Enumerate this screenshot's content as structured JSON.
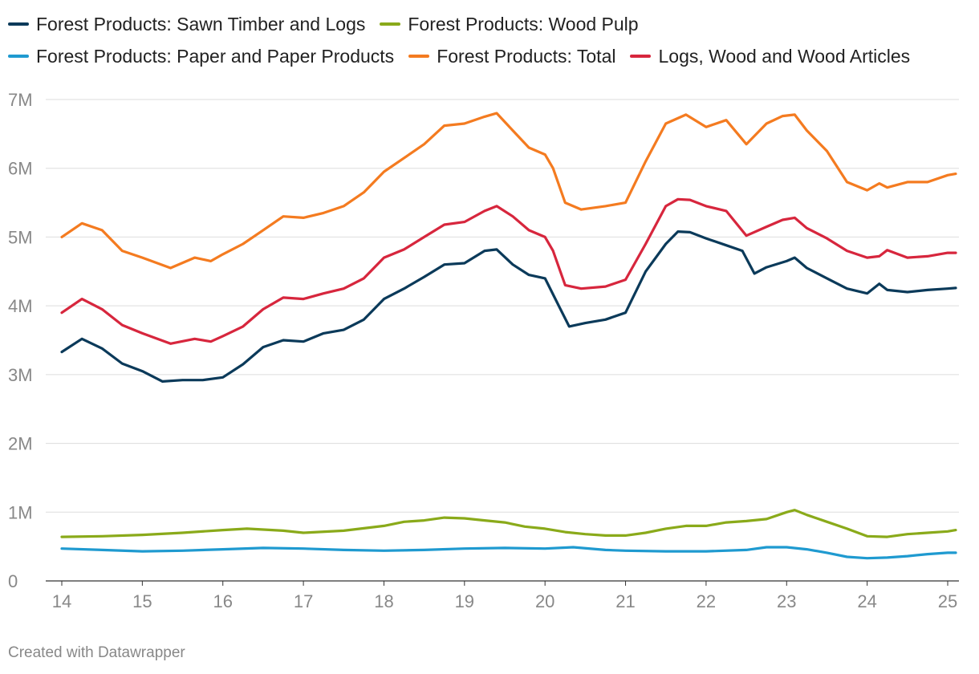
{
  "chart_data": {
    "type": "line",
    "title": "",
    "xlabel": "",
    "ylabel": "",
    "ylim": [
      0,
      7000000
    ],
    "xlim": [
      14,
      25.1
    ],
    "yticks": [
      {
        "value": 0,
        "label": "0"
      },
      {
        "value": 1000000,
        "label": "1M"
      },
      {
        "value": 2000000,
        "label": "2M"
      },
      {
        "value": 3000000,
        "label": "3M"
      },
      {
        "value": 4000000,
        "label": "4M"
      },
      {
        "value": 5000000,
        "label": "5M"
      },
      {
        "value": 6000000,
        "label": "6M"
      },
      {
        "value": 7000000,
        "label": "7M"
      }
    ],
    "xticks": [
      {
        "value": 14,
        "label": "14"
      },
      {
        "value": 15,
        "label": "15"
      },
      {
        "value": 16,
        "label": "16"
      },
      {
        "value": 17,
        "label": "17"
      },
      {
        "value": 18,
        "label": "18"
      },
      {
        "value": 19,
        "label": "19"
      },
      {
        "value": 20,
        "label": "20"
      },
      {
        "value": 21,
        "label": "21"
      },
      {
        "value": 22,
        "label": "22"
      },
      {
        "value": 23,
        "label": "23"
      },
      {
        "value": 24,
        "label": "24"
      },
      {
        "value": 25,
        "label": "25"
      }
    ],
    "grid": true,
    "legend_position": "top",
    "series": [
      {
        "name": "Forest Products: Sawn Timber and Logs",
        "color": "#0b3a5a",
        "x": [
          14,
          14.25,
          14.5,
          14.75,
          15,
          15.25,
          15.5,
          15.75,
          16,
          16.25,
          16.5,
          16.75,
          17,
          17.25,
          17.5,
          17.75,
          18,
          18.25,
          18.5,
          18.75,
          19,
          19.25,
          19.4,
          19.6,
          19.8,
          20,
          20.15,
          20.3,
          20.5,
          20.75,
          21,
          21.25,
          21.5,
          21.65,
          21.8,
          22,
          22.25,
          22.45,
          22.6,
          22.75,
          23,
          23.1,
          23.25,
          23.5,
          23.75,
          24,
          24.15,
          24.25,
          24.5,
          24.75,
          25,
          25.1
        ],
        "values": [
          3330000,
          3520000,
          3380000,
          3160000,
          3050000,
          2900000,
          2920000,
          2920000,
          2960000,
          3150000,
          3400000,
          3500000,
          3480000,
          3600000,
          3650000,
          3800000,
          4100000,
          4250000,
          4420000,
          4600000,
          4620000,
          4800000,
          4820000,
          4600000,
          4450000,
          4400000,
          4050000,
          3700000,
          3750000,
          3800000,
          3900000,
          4500000,
          4900000,
          5080000,
          5070000,
          4980000,
          4880000,
          4800000,
          4470000,
          4560000,
          4650000,
          4700000,
          4550000,
          4400000,
          4250000,
          4180000,
          4320000,
          4230000,
          4200000,
          4230000,
          4250000,
          4260000
        ]
      },
      {
        "name": "Forest Products: Wood Pulp",
        "color": "#8aaa1a",
        "x": [
          14,
          14.5,
          15,
          15.5,
          16,
          16.3,
          16.75,
          17,
          17.5,
          18,
          18.25,
          18.5,
          18.75,
          19,
          19.25,
          19.5,
          19.75,
          20,
          20.25,
          20.5,
          20.75,
          21,
          21.25,
          21.5,
          21.75,
          22,
          22.25,
          22.5,
          22.75,
          23,
          23.1,
          23.25,
          23.5,
          23.75,
          24,
          24.25,
          24.5,
          24.75,
          25,
          25.1
        ],
        "values": [
          640000,
          650000,
          670000,
          700000,
          740000,
          760000,
          730000,
          700000,
          730000,
          800000,
          860000,
          880000,
          920000,
          910000,
          880000,
          850000,
          790000,
          760000,
          710000,
          680000,
          660000,
          660000,
          700000,
          760000,
          800000,
          800000,
          850000,
          870000,
          900000,
          1000000,
          1030000,
          960000,
          860000,
          760000,
          650000,
          640000,
          680000,
          700000,
          720000,
          740000
        ]
      },
      {
        "name": "Forest Products: Paper and Paper Products",
        "color": "#1f9ad0",
        "x": [
          14,
          14.5,
          15,
          15.5,
          16,
          16.5,
          17,
          17.5,
          18,
          18.5,
          19,
          19.5,
          20,
          20.35,
          20.75,
          21,
          21.5,
          22,
          22.5,
          22.75,
          23,
          23.25,
          23.5,
          23.75,
          24,
          24.25,
          24.5,
          24.75,
          25,
          25.1
        ],
        "values": [
          470000,
          450000,
          430000,
          440000,
          460000,
          480000,
          470000,
          450000,
          440000,
          450000,
          470000,
          480000,
          470000,
          490000,
          450000,
          440000,
          430000,
          430000,
          450000,
          490000,
          490000,
          460000,
          410000,
          350000,
          330000,
          340000,
          360000,
          390000,
          410000,
          410000
        ]
      },
      {
        "name": "Forest Products: Total",
        "color": "#f47b20",
        "x": [
          14,
          14.25,
          14.5,
          14.75,
          15,
          15.35,
          15.65,
          15.85,
          16,
          16.25,
          16.5,
          16.75,
          17,
          17.25,
          17.5,
          17.75,
          18,
          18.25,
          18.5,
          18.75,
          19,
          19.25,
          19.4,
          19.6,
          19.8,
          20,
          20.1,
          20.25,
          20.45,
          20.75,
          21,
          21.25,
          21.5,
          21.75,
          22,
          22.25,
          22.5,
          22.75,
          22.95,
          23.1,
          23.25,
          23.5,
          23.75,
          24,
          24.15,
          24.25,
          24.5,
          24.75,
          25,
          25.1
        ],
        "values": [
          5000000,
          5200000,
          5100000,
          4800000,
          4700000,
          4550000,
          4700000,
          4650000,
          4750000,
          4900000,
          5100000,
          5300000,
          5280000,
          5350000,
          5450000,
          5650000,
          5950000,
          6150000,
          6350000,
          6620000,
          6650000,
          6750000,
          6800000,
          6550000,
          6300000,
          6200000,
          6000000,
          5500000,
          5400000,
          5450000,
          5500000,
          6100000,
          6650000,
          6780000,
          6600000,
          6700000,
          6350000,
          6650000,
          6760000,
          6780000,
          6550000,
          6250000,
          5800000,
          5680000,
          5780000,
          5720000,
          5800000,
          5800000,
          5900000,
          5920000
        ]
      },
      {
        "name": "Logs, Wood and Wood Articles",
        "color": "#d7263d",
        "x": [
          14,
          14.25,
          14.5,
          14.75,
          15,
          15.35,
          15.65,
          15.85,
          16,
          16.25,
          16.5,
          16.75,
          17,
          17.25,
          17.5,
          17.75,
          18,
          18.25,
          18.5,
          18.75,
          19,
          19.25,
          19.4,
          19.6,
          19.8,
          20,
          20.1,
          20.25,
          20.45,
          20.75,
          21,
          21.25,
          21.5,
          21.65,
          21.8,
          22,
          22.25,
          22.5,
          22.75,
          22.95,
          23.1,
          23.25,
          23.5,
          23.75,
          24,
          24.15,
          24.25,
          24.5,
          24.75,
          25,
          25.1
        ],
        "values": [
          3900000,
          4100000,
          3950000,
          3720000,
          3600000,
          3450000,
          3520000,
          3480000,
          3560000,
          3700000,
          3950000,
          4120000,
          4100000,
          4180000,
          4250000,
          4400000,
          4700000,
          4820000,
          5000000,
          5180000,
          5220000,
          5380000,
          5450000,
          5300000,
          5100000,
          5000000,
          4800000,
          4300000,
          4250000,
          4280000,
          4380000,
          4900000,
          5450000,
          5550000,
          5540000,
          5450000,
          5380000,
          5020000,
          5150000,
          5250000,
          5280000,
          5130000,
          4980000,
          4800000,
          4700000,
          4720000,
          4810000,
          4700000,
          4720000,
          4770000,
          4770000
        ]
      }
    ]
  },
  "footer": {
    "credit": "Created with Datawrapper"
  }
}
